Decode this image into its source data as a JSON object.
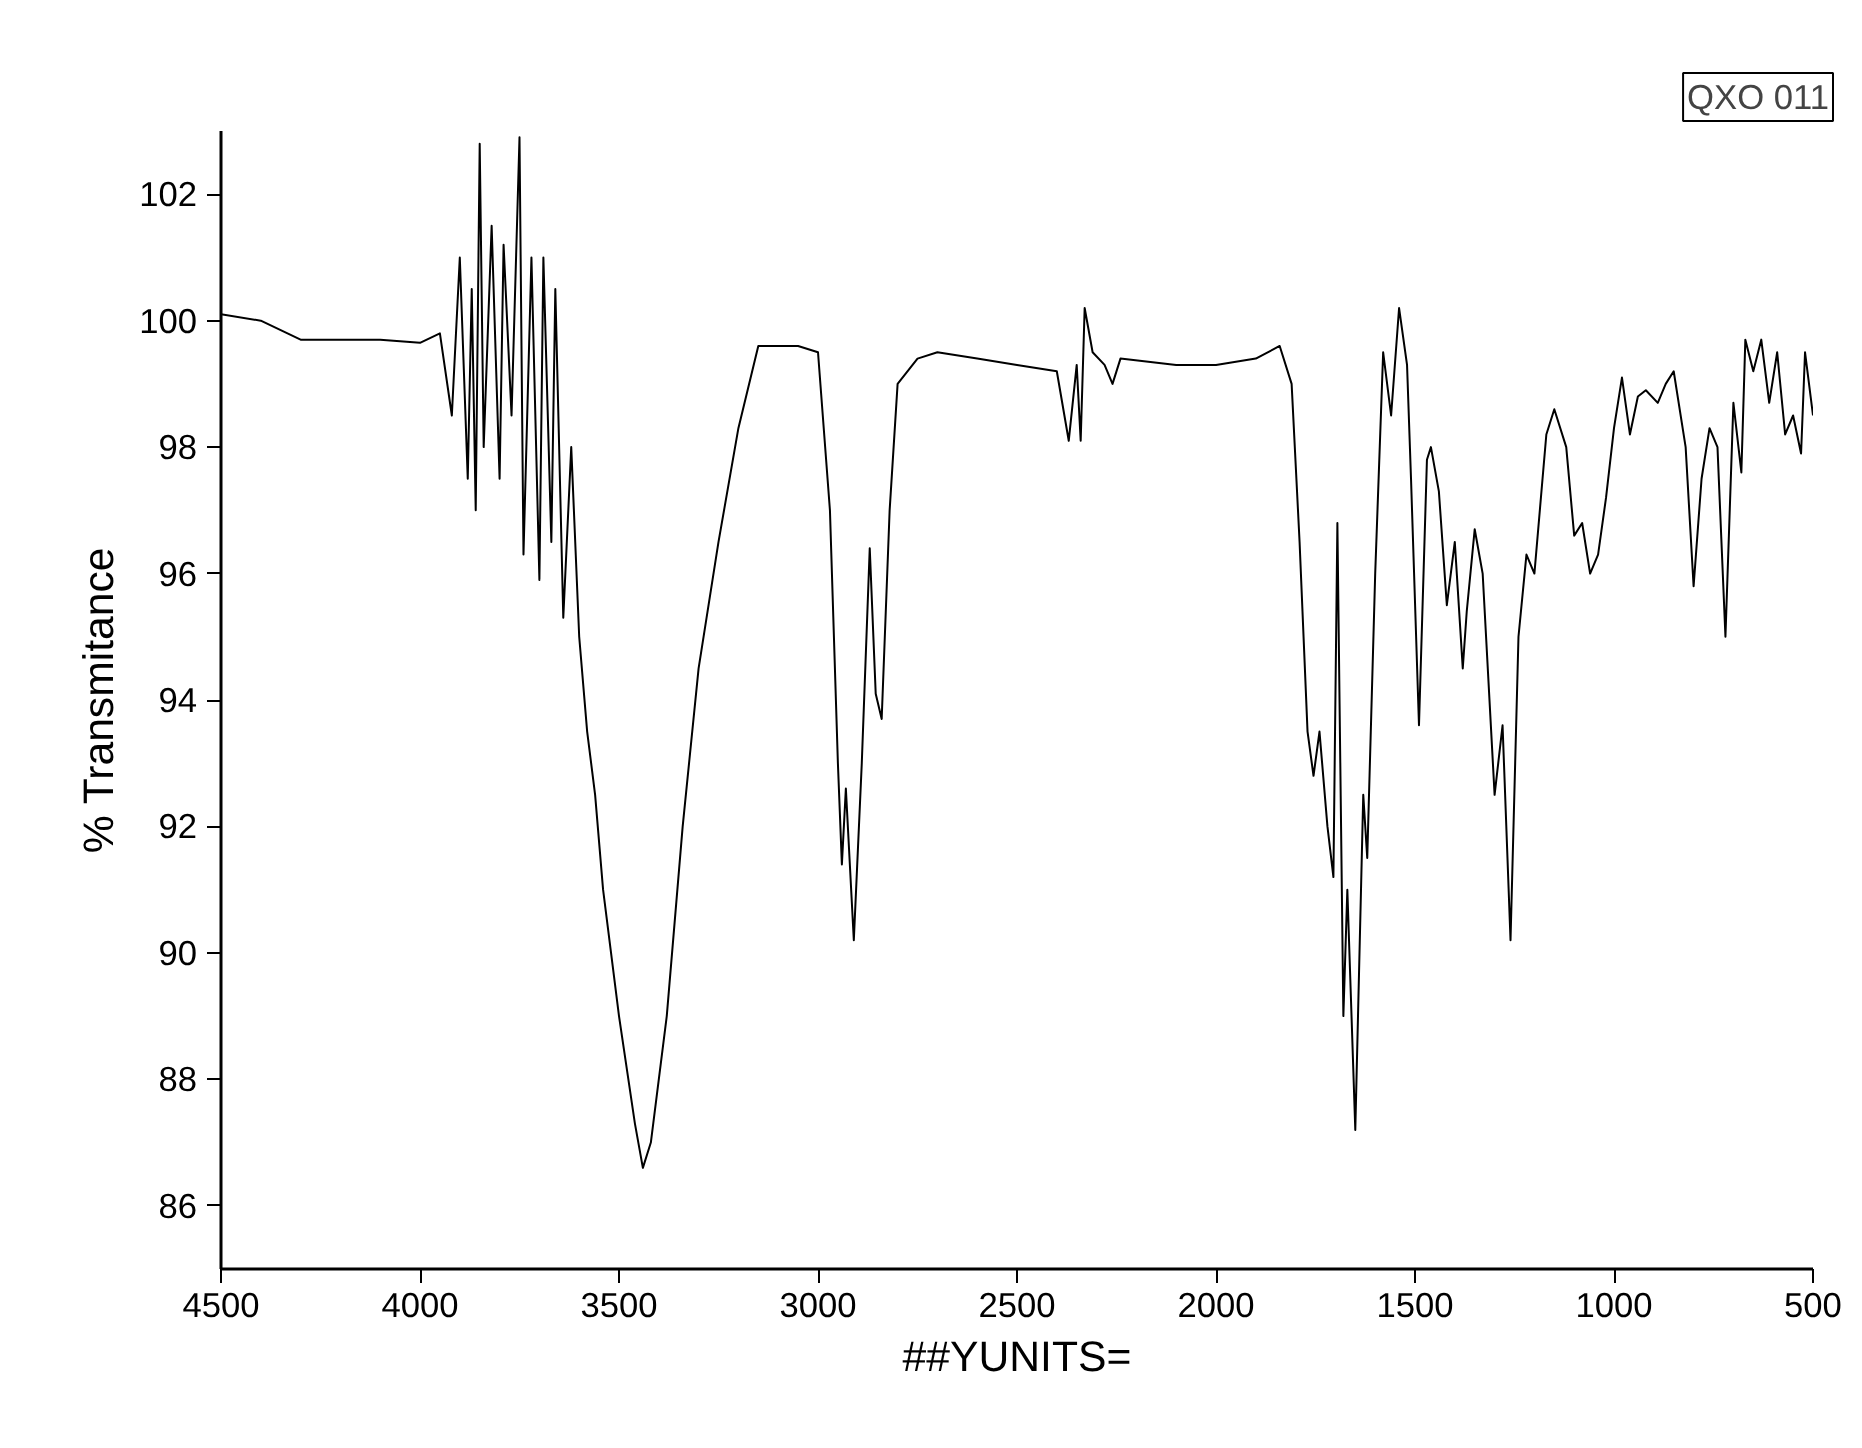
{
  "chart_data": {
    "type": "line",
    "xlabel": "##YUNITS=",
    "ylabel": "% Transmitance",
    "annotations": [
      "QXO 011"
    ],
    "xlim": [
      4500,
      500
    ],
    "ylim": [
      85,
      103
    ],
    "xticks": [
      4500,
      4000,
      3500,
      3000,
      2500,
      2000,
      1500,
      1000,
      500
    ],
    "yticks": [
      86,
      88,
      90,
      92,
      94,
      96,
      98,
      100,
      102
    ],
    "grid": false,
    "marker": "none",
    "line_style": "solid",
    "series": [
      {
        "color": "#000000",
        "x": [
          4500,
          4400,
          4300,
          4200,
          4100,
          4000,
          3950,
          3920,
          3900,
          3880,
          3870,
          3860,
          3850,
          3840,
          3820,
          3800,
          3790,
          3770,
          3750,
          3740,
          3720,
          3700,
          3690,
          3670,
          3660,
          3640,
          3620,
          3600,
          3580,
          3560,
          3540,
          3500,
          3460,
          3440,
          3420,
          3380,
          3340,
          3300,
          3250,
          3200,
          3150,
          3100,
          3050,
          3000,
          2970,
          2950,
          2940,
          2930,
          2910,
          2890,
          2870,
          2855,
          2840,
          2820,
          2800,
          2750,
          2700,
          2600,
          2500,
          2400,
          2370,
          2350,
          2340,
          2330,
          2310,
          2280,
          2260,
          2240,
          2100,
          2000,
          1900,
          1840,
          1810,
          1790,
          1770,
          1755,
          1740,
          1720,
          1705,
          1695,
          1680,
          1670,
          1650,
          1630,
          1620,
          1600,
          1580,
          1560,
          1540,
          1520,
          1510,
          1490,
          1470,
          1460,
          1440,
          1420,
          1400,
          1380,
          1370,
          1350,
          1330,
          1300,
          1280,
          1260,
          1240,
          1220,
          1200,
          1170,
          1150,
          1120,
          1100,
          1080,
          1060,
          1040,
          1020,
          1000,
          980,
          960,
          940,
          920,
          890,
          870,
          850,
          820,
          800,
          780,
          760,
          740,
          720,
          700,
          680,
          670,
          650,
          630,
          610,
          590,
          570,
          550,
          530,
          520,
          500
        ],
        "values": [
          100.1,
          100.0,
          99.7,
          99.7,
          99.7,
          99.65,
          99.8,
          98.5,
          101.0,
          97.5,
          100.5,
          97.0,
          102.8,
          98,
          101.5,
          97.5,
          101.2,
          98.5,
          102.9,
          96.3,
          101,
          95.9,
          101,
          96.5,
          100.5,
          95.3,
          98,
          95,
          93.5,
          92.5,
          91,
          89,
          87.3,
          86.6,
          87.0,
          89,
          92,
          94.5,
          96.5,
          98.3,
          99.6,
          99.6,
          99.6,
          99.5,
          97,
          93,
          91.4,
          92.6,
          90.2,
          93,
          96.4,
          94.1,
          93.7,
          97,
          99,
          99.4,
          99.5,
          99.4,
          99.3,
          99.2,
          98.1,
          99.3,
          98.1,
          100.2,
          99.5,
          99.3,
          99.0,
          99.4,
          99.3,
          99.3,
          99.4,
          99.6,
          99.0,
          96.5,
          93.5,
          92.8,
          93.5,
          92,
          91.2,
          96.8,
          89,
          91,
          87.2,
          92.5,
          91.5,
          96,
          99.5,
          98.5,
          100.2,
          99.3,
          97.5,
          93.6,
          97.8,
          98.0,
          97.3,
          95.5,
          96.5,
          94.5,
          95.4,
          96.7,
          96,
          92.5,
          93.6,
          90.2,
          95,
          96.3,
          96.0,
          98.2,
          98.6,
          98,
          96.6,
          96.8,
          96.0,
          96.3,
          97.2,
          98.3,
          99.1,
          98.2,
          98.8,
          98.9,
          98.7,
          99.0,
          99.2,
          98.0,
          95.8,
          97.5,
          98.3,
          98.0,
          95.0,
          98.7,
          97.6,
          99.7,
          99.2,
          99.7,
          98.7,
          99.5,
          98.2,
          98.5,
          97.9,
          99.5,
          98.5
        ]
      }
    ]
  }
}
